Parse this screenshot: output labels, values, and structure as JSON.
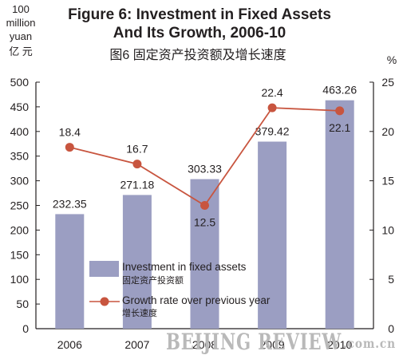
{
  "title_en_line1": "Figure 6: Investment in Fixed Assets",
  "title_en_line2": "And Its Growth, 2006-10",
  "title_cn": "图6  固定资产投资额及增长速度",
  "left_axis_unit": [
    "100",
    "million",
    "yuan",
    "亿 元"
  ],
  "right_axis_unit": "%",
  "watermark": "BEIJING REVIEW",
  "watermark_suffix": ".com.cn",
  "colors": {
    "bar": "#9b9ec2",
    "line": "#c8553f",
    "marker": "#c8553f",
    "axis": "#231f20"
  },
  "legend": {
    "bar_label": "Investment in fixed assets",
    "bar_label_cn": "固定资产投资额",
    "line_label": "Growth rate over previous year",
    "line_label_cn": "增长速度"
  },
  "chart_data": {
    "type": "bar",
    "categories": [
      "2006",
      "2007",
      "2008",
      "2009",
      "2010"
    ],
    "series": [
      {
        "name": "Investment in fixed assets",
        "type": "bar",
        "axis": "left",
        "values": [
          232.35,
          271.18,
          303.33,
          379.42,
          463.26
        ],
        "labels": [
          "232.35",
          "271.18",
          "303.33",
          "379.42",
          "463.26"
        ]
      },
      {
        "name": "Growth rate over previous year",
        "type": "line",
        "axis": "right",
        "values": [
          18.4,
          16.7,
          12.5,
          22.4,
          22.1
        ],
        "labels": [
          "18.4",
          "16.7",
          "12.5",
          "22.4",
          "22.1"
        ]
      }
    ],
    "y_left": {
      "lim": [
        0,
        500
      ],
      "ticks": [
        "0",
        "50",
        "100",
        "150",
        "200",
        "250",
        "300",
        "350",
        "400",
        "450",
        "500"
      ]
    },
    "y_right": {
      "lim": [
        0,
        25
      ],
      "ticks": [
        "0",
        "5",
        "10",
        "15",
        "20",
        "25"
      ]
    },
    "legend_position": "bottom-center",
    "grid": false
  }
}
